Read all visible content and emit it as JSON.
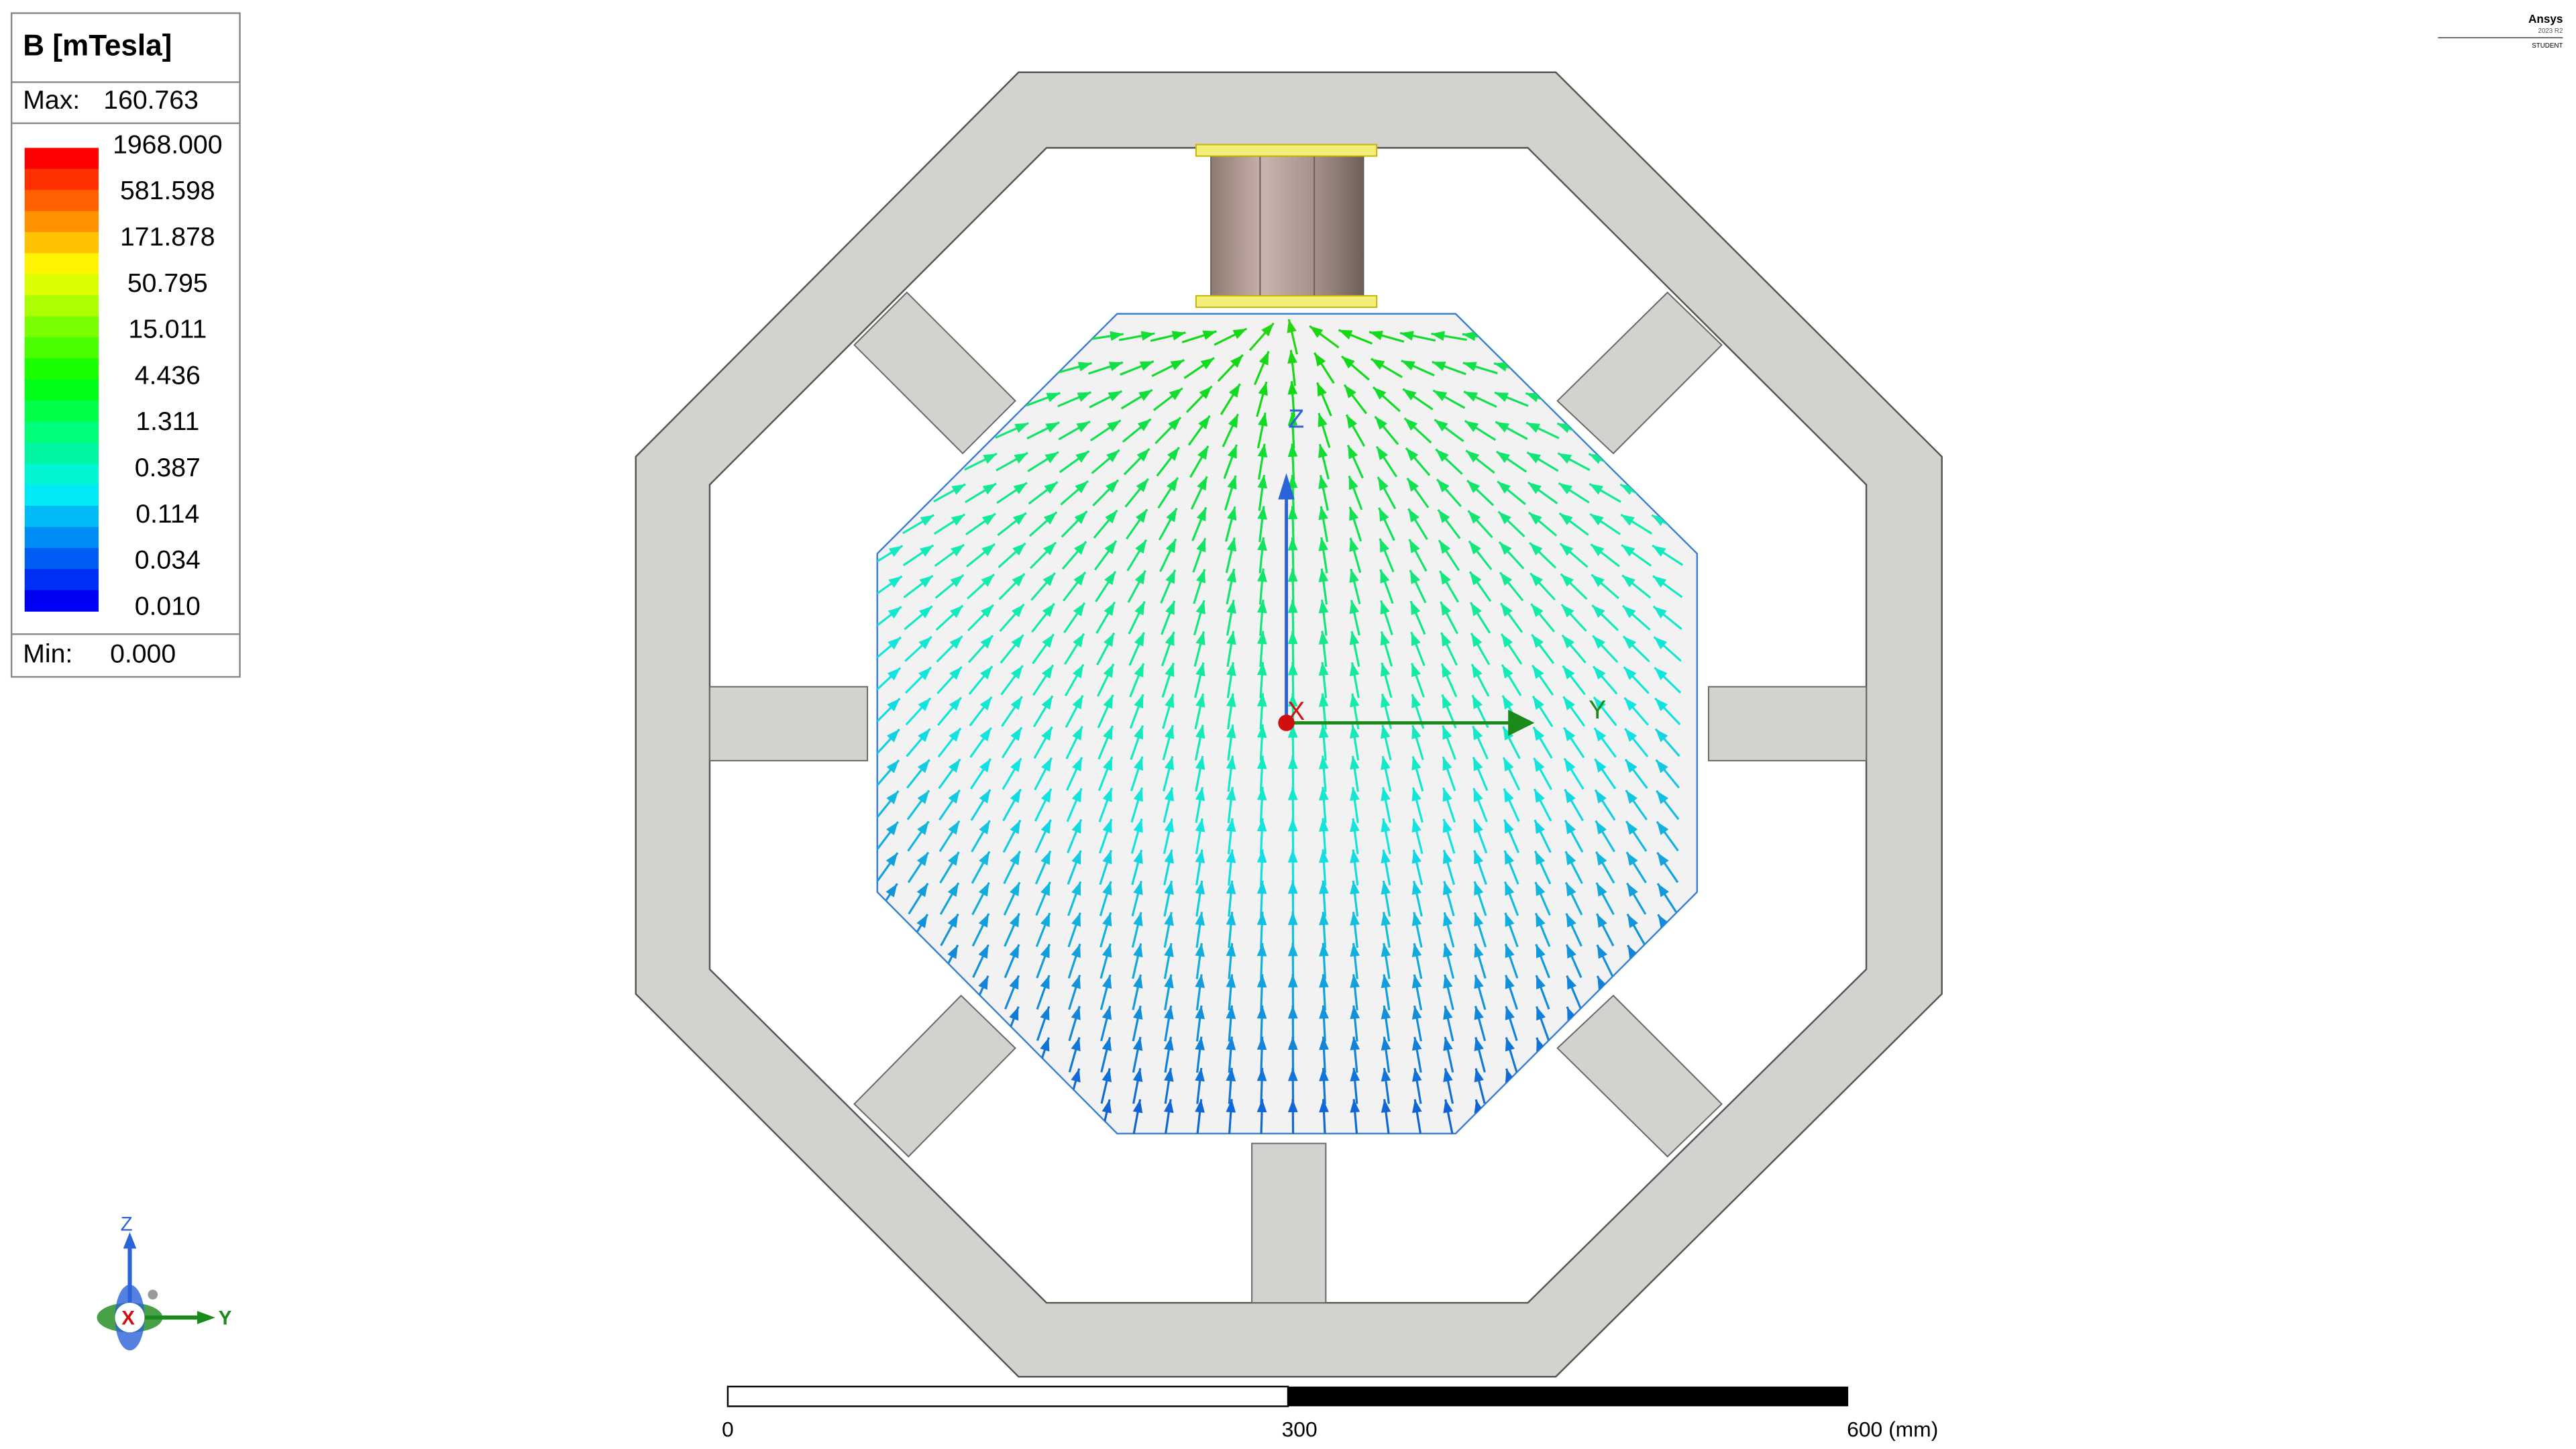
{
  "legend": {
    "title": "B [mTesla]",
    "max_label": "Max:",
    "max_value": "160.763",
    "levels": [
      "1968.000",
      "581.598",
      "171.878",
      "50.795",
      "15.011",
      "4.436",
      "1.311",
      "0.387",
      "0.114",
      "0.034",
      "0.010"
    ],
    "min_label": "Min:",
    "min_value": "0.000"
  },
  "model_axes": {
    "z": "Z",
    "y": "Y",
    "x": "X"
  },
  "triad": {
    "z": "Z",
    "y": "Y",
    "x": "X"
  },
  "scale_bar": {
    "ticks": [
      "0",
      "300",
      "600 (mm)"
    ]
  },
  "branding": {
    "name": "Ansys",
    "version": "2023 R2",
    "edition": "STUDENT"
  }
}
